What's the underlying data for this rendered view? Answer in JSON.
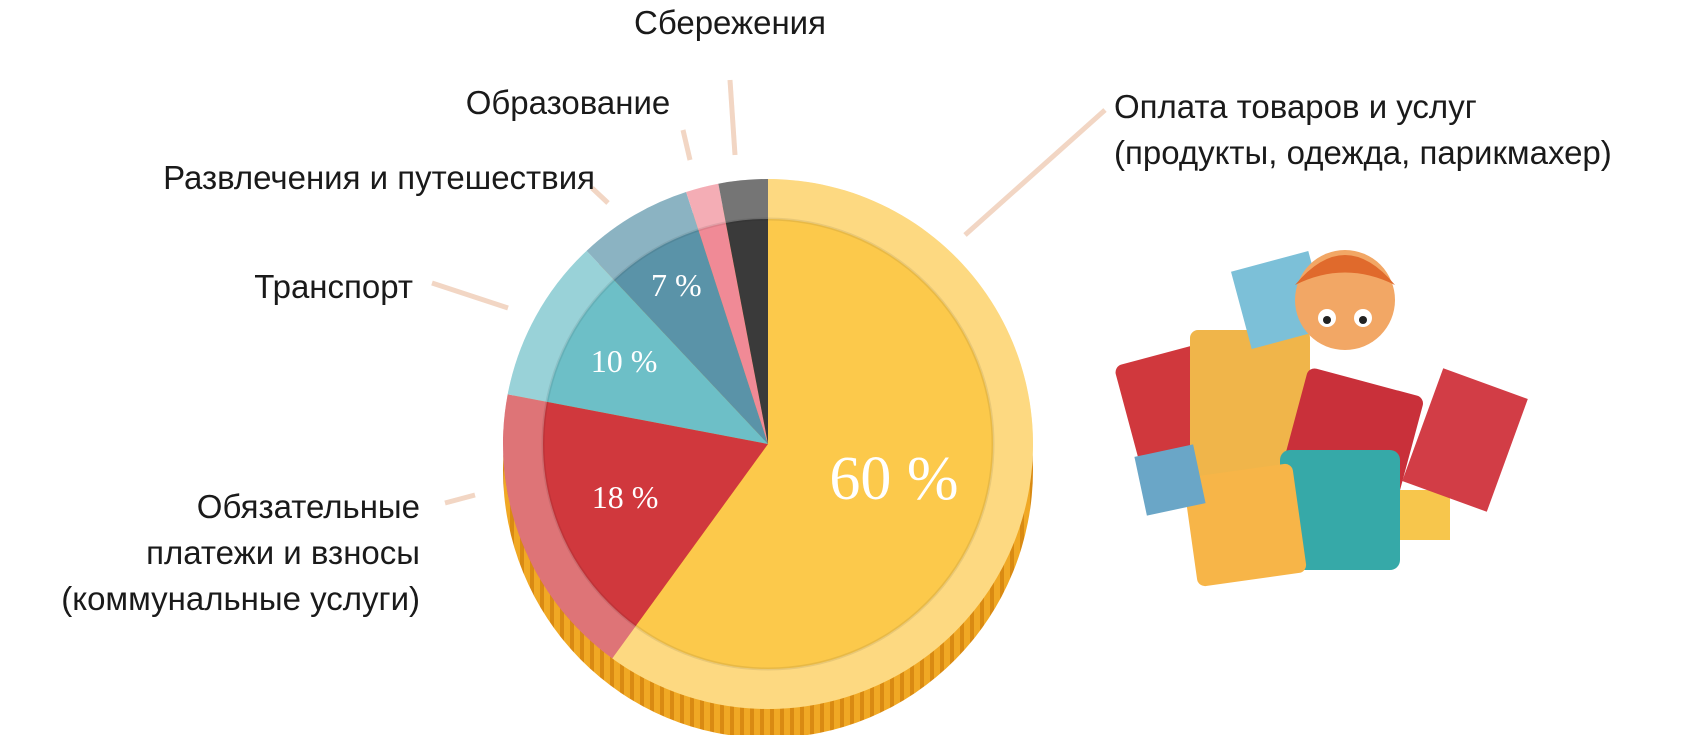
{
  "chart_data": {
    "type": "pie",
    "categories": [
      "Оплата товаров и услуг\n(продукты, одежда, парикмахер)",
      "Обязательные\nплатежи и взносы\n(коммунальные услуги)",
      "Транспорт",
      "Развлечения и путешествия",
      "Образование",
      "Сбережения"
    ],
    "values": [
      60,
      18,
      10,
      7,
      2,
      3
    ],
    "value_labels": [
      "60 %",
      "18 %",
      "10 %",
      "7 %",
      null,
      null
    ],
    "colors": [
      "#fcc94b",
      "#d0383d",
      "#6dbfc7",
      "#5a93a8",
      "#f08a96",
      "#3a3a3a"
    ]
  }
}
